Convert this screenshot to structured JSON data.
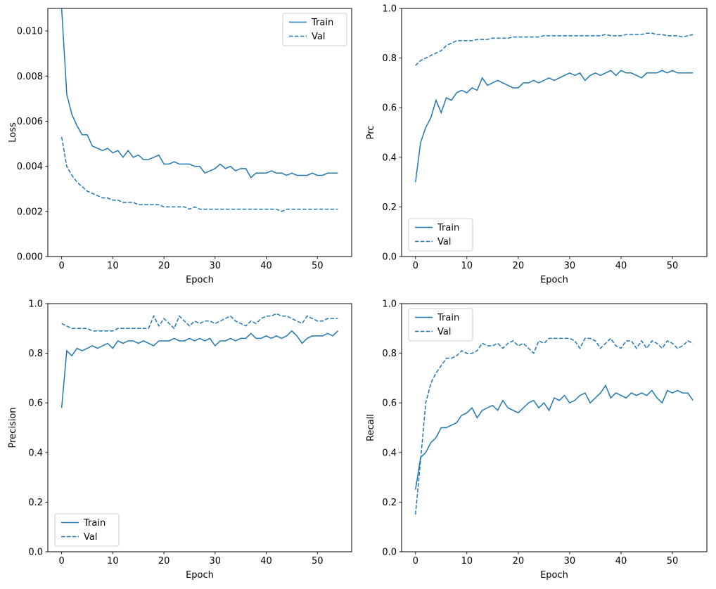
{
  "figure": {
    "background": "#ffffff",
    "accent_color": "#1f77b4",
    "spine_color": "#000000",
    "legend_edge_color": "#cccccc"
  },
  "chart_data": [
    {
      "type": "line",
      "title": "",
      "xlabel": "Epoch",
      "ylabel": "Loss",
      "xlim": [
        -2.7,
        56.7
      ],
      "ylim": [
        0,
        0.011
      ],
      "grid": false,
      "xticks": {
        "values": [
          0,
          10,
          20,
          30,
          40,
          50
        ],
        "labels": [
          "0",
          "10",
          "20",
          "30",
          "40",
          "50"
        ]
      },
      "yticks": {
        "values": [
          0,
          0.002,
          0.004,
          0.006,
          0.008,
          0.01
        ],
        "labels": [
          "0.000",
          "0.002",
          "0.004",
          "0.006",
          "0.008",
          "0.010"
        ]
      },
      "legend": {
        "loc": "upper-right",
        "entries": [
          "Train",
          "Val"
        ]
      },
      "x": [
        0,
        1,
        2,
        3,
        4,
        5,
        6,
        7,
        8,
        9,
        10,
        11,
        12,
        13,
        14,
        15,
        16,
        17,
        18,
        19,
        20,
        21,
        22,
        23,
        24,
        25,
        26,
        27,
        28,
        29,
        30,
        31,
        32,
        33,
        34,
        35,
        36,
        37,
        38,
        39,
        40,
        41,
        42,
        43,
        44,
        45,
        46,
        47,
        48,
        49,
        50,
        51,
        52,
        53,
        54
      ],
      "series": [
        {
          "name": "Train",
          "style": "solid",
          "color": "#1f77b4",
          "values": [
            0.011,
            0.0072,
            0.0063,
            0.0058,
            0.0054,
            0.0054,
            0.0049,
            0.0048,
            0.0047,
            0.0048,
            0.0046,
            0.0047,
            0.0044,
            0.0047,
            0.0044,
            0.0045,
            0.0043,
            0.0043,
            0.0044,
            0.0045,
            0.0041,
            0.0041,
            0.0042,
            0.0041,
            0.0041,
            0.0041,
            0.004,
            0.004,
            0.0037,
            0.0038,
            0.0039,
            0.0041,
            0.0039,
            0.004,
            0.0038,
            0.0039,
            0.0039,
            0.0035,
            0.0037,
            0.0037,
            0.0037,
            0.0038,
            0.0037,
            0.0037,
            0.0036,
            0.0037,
            0.0036,
            0.0036,
            0.0036,
            0.0037,
            0.0036,
            0.0036,
            0.0037,
            0.0037,
            0.0037
          ]
        },
        {
          "name": "Val",
          "style": "dashed",
          "color": "#1f77b4",
          "values": [
            0.0053,
            0.004,
            0.0036,
            0.0033,
            0.0031,
            0.0029,
            0.0028,
            0.0027,
            0.0026,
            0.0026,
            0.0025,
            0.0025,
            0.0024,
            0.0024,
            0.0024,
            0.0023,
            0.0023,
            0.0023,
            0.0023,
            0.0023,
            0.0022,
            0.0022,
            0.0022,
            0.0022,
            0.0022,
            0.0021,
            0.0022,
            0.0021,
            0.0021,
            0.0021,
            0.0021,
            0.0021,
            0.0021,
            0.0021,
            0.0021,
            0.0021,
            0.0021,
            0.0021,
            0.0021,
            0.0021,
            0.0021,
            0.0021,
            0.0021,
            0.002,
            0.0021,
            0.0021,
            0.0021,
            0.0021,
            0.0021,
            0.0021,
            0.0021,
            0.0021,
            0.0021,
            0.0021,
            0.0021
          ]
        }
      ]
    },
    {
      "type": "line",
      "title": "",
      "xlabel": "Epoch",
      "ylabel": "Prc",
      "xlim": [
        -2.7,
        56.7
      ],
      "ylim": [
        0,
        1.0
      ],
      "grid": false,
      "xticks": {
        "values": [
          0,
          10,
          20,
          30,
          40,
          50
        ],
        "labels": [
          "0",
          "10",
          "20",
          "30",
          "40",
          "50"
        ]
      },
      "yticks": {
        "values": [
          0,
          0.2,
          0.4,
          0.6,
          0.8,
          1.0
        ],
        "labels": [
          "0.0",
          "0.2",
          "0.4",
          "0.6",
          "0.8",
          "1.0"
        ]
      },
      "legend": {
        "loc": "lower-left",
        "entries": [
          "Train",
          "Val"
        ]
      },
      "x": [
        0,
        1,
        2,
        3,
        4,
        5,
        6,
        7,
        8,
        9,
        10,
        11,
        12,
        13,
        14,
        15,
        16,
        17,
        18,
        19,
        20,
        21,
        22,
        23,
        24,
        25,
        26,
        27,
        28,
        29,
        30,
        31,
        32,
        33,
        34,
        35,
        36,
        37,
        38,
        39,
        40,
        41,
        42,
        43,
        44,
        45,
        46,
        47,
        48,
        49,
        50,
        51,
        52,
        53,
        54
      ],
      "series": [
        {
          "name": "Train",
          "style": "solid",
          "color": "#1f77b4",
          "values": [
            0.3,
            0.46,
            0.52,
            0.56,
            0.63,
            0.58,
            0.64,
            0.63,
            0.66,
            0.67,
            0.66,
            0.68,
            0.67,
            0.72,
            0.69,
            0.7,
            0.71,
            0.7,
            0.69,
            0.68,
            0.68,
            0.7,
            0.7,
            0.71,
            0.7,
            0.71,
            0.72,
            0.71,
            0.72,
            0.73,
            0.74,
            0.73,
            0.74,
            0.71,
            0.73,
            0.74,
            0.73,
            0.74,
            0.75,
            0.73,
            0.75,
            0.74,
            0.74,
            0.73,
            0.72,
            0.74,
            0.74,
            0.74,
            0.75,
            0.74,
            0.75,
            0.74,
            0.74,
            0.74,
            0.74
          ]
        },
        {
          "name": "Val",
          "style": "dashed",
          "color": "#1f77b4",
          "values": [
            0.77,
            0.79,
            0.8,
            0.81,
            0.82,
            0.83,
            0.85,
            0.86,
            0.87,
            0.87,
            0.87,
            0.87,
            0.875,
            0.875,
            0.875,
            0.88,
            0.88,
            0.88,
            0.88,
            0.885,
            0.885,
            0.885,
            0.885,
            0.885,
            0.885,
            0.89,
            0.89,
            0.89,
            0.89,
            0.89,
            0.89,
            0.89,
            0.89,
            0.89,
            0.89,
            0.89,
            0.89,
            0.895,
            0.89,
            0.89,
            0.89,
            0.895,
            0.895,
            0.895,
            0.895,
            0.9,
            0.9,
            0.895,
            0.895,
            0.89,
            0.89,
            0.89,
            0.885,
            0.89,
            0.895
          ]
        }
      ]
    },
    {
      "type": "line",
      "title": "",
      "xlabel": "Epoch",
      "ylabel": "Precision",
      "xlim": [
        -2.7,
        56.7
      ],
      "ylim": [
        0,
        1.0
      ],
      "grid": false,
      "xticks": {
        "values": [
          0,
          10,
          20,
          30,
          40,
          50
        ],
        "labels": [
          "0",
          "10",
          "20",
          "30",
          "40",
          "50"
        ]
      },
      "yticks": {
        "values": [
          0,
          0.2,
          0.4,
          0.6,
          0.8,
          1.0
        ],
        "labels": [
          "0.0",
          "0.2",
          "0.4",
          "0.6",
          "0.8",
          "1.0"
        ]
      },
      "legend": {
        "loc": "lower-left",
        "entries": [
          "Train",
          "Val"
        ]
      },
      "x": [
        0,
        1,
        2,
        3,
        4,
        5,
        6,
        7,
        8,
        9,
        10,
        11,
        12,
        13,
        14,
        15,
        16,
        17,
        18,
        19,
        20,
        21,
        22,
        23,
        24,
        25,
        26,
        27,
        28,
        29,
        30,
        31,
        32,
        33,
        34,
        35,
        36,
        37,
        38,
        39,
        40,
        41,
        42,
        43,
        44,
        45,
        46,
        47,
        48,
        49,
        50,
        51,
        52,
        53,
        54
      ],
      "series": [
        {
          "name": "Train",
          "style": "solid",
          "color": "#1f77b4",
          "values": [
            0.58,
            0.81,
            0.79,
            0.82,
            0.81,
            0.82,
            0.83,
            0.82,
            0.83,
            0.84,
            0.82,
            0.85,
            0.84,
            0.85,
            0.85,
            0.84,
            0.85,
            0.84,
            0.83,
            0.85,
            0.85,
            0.85,
            0.86,
            0.85,
            0.85,
            0.86,
            0.85,
            0.86,
            0.85,
            0.86,
            0.83,
            0.85,
            0.85,
            0.86,
            0.85,
            0.86,
            0.86,
            0.88,
            0.86,
            0.86,
            0.87,
            0.86,
            0.87,
            0.86,
            0.87,
            0.89,
            0.87,
            0.84,
            0.86,
            0.87,
            0.87,
            0.87,
            0.88,
            0.87,
            0.89
          ]
        },
        {
          "name": "Val",
          "style": "dashed",
          "color": "#1f77b4",
          "values": [
            0.92,
            0.91,
            0.9,
            0.9,
            0.9,
            0.9,
            0.89,
            0.89,
            0.89,
            0.89,
            0.89,
            0.9,
            0.9,
            0.9,
            0.9,
            0.9,
            0.9,
            0.9,
            0.95,
            0.91,
            0.94,
            0.92,
            0.9,
            0.95,
            0.93,
            0.91,
            0.93,
            0.92,
            0.93,
            0.93,
            0.92,
            0.93,
            0.94,
            0.95,
            0.93,
            0.92,
            0.91,
            0.93,
            0.92,
            0.94,
            0.95,
            0.95,
            0.96,
            0.95,
            0.95,
            0.94,
            0.93,
            0.92,
            0.95,
            0.94,
            0.93,
            0.93,
            0.94,
            0.94,
            0.94
          ]
        }
      ]
    },
    {
      "type": "line",
      "title": "",
      "xlabel": "Epoch",
      "ylabel": "Recall",
      "xlim": [
        -2.7,
        56.7
      ],
      "ylim": [
        0,
        1.0
      ],
      "grid": false,
      "xticks": {
        "values": [
          0,
          10,
          20,
          30,
          40,
          50
        ],
        "labels": [
          "0",
          "10",
          "20",
          "30",
          "40",
          "50"
        ]
      },
      "yticks": {
        "values": [
          0,
          0.2,
          0.4,
          0.6,
          0.8,
          1.0
        ],
        "labels": [
          "0.0",
          "0.2",
          "0.4",
          "0.6",
          "0.8",
          "1.0"
        ]
      },
      "legend": {
        "loc": "upper-left",
        "entries": [
          "Train",
          "Val"
        ]
      },
      "x": [
        0,
        1,
        2,
        3,
        4,
        5,
        6,
        7,
        8,
        9,
        10,
        11,
        12,
        13,
        14,
        15,
        16,
        17,
        18,
        19,
        20,
        21,
        22,
        23,
        24,
        25,
        26,
        27,
        28,
        29,
        30,
        31,
        32,
        33,
        34,
        35,
        36,
        37,
        38,
        39,
        40,
        41,
        42,
        43,
        44,
        45,
        46,
        47,
        48,
        49,
        50,
        51,
        52,
        53,
        54
      ],
      "series": [
        {
          "name": "Train",
          "style": "solid",
          "color": "#1f77b4",
          "values": [
            0.25,
            0.38,
            0.4,
            0.44,
            0.46,
            0.5,
            0.5,
            0.51,
            0.52,
            0.55,
            0.56,
            0.58,
            0.54,
            0.57,
            0.58,
            0.59,
            0.57,
            0.61,
            0.58,
            0.57,
            0.56,
            0.58,
            0.6,
            0.61,
            0.58,
            0.6,
            0.57,
            0.62,
            0.61,
            0.63,
            0.6,
            0.61,
            0.63,
            0.64,
            0.6,
            0.62,
            0.64,
            0.67,
            0.62,
            0.64,
            0.63,
            0.62,
            0.64,
            0.63,
            0.64,
            0.63,
            0.65,
            0.62,
            0.6,
            0.65,
            0.64,
            0.65,
            0.64,
            0.64,
            0.61
          ]
        },
        {
          "name": "Val",
          "style": "dashed",
          "color": "#1f77b4",
          "values": [
            0.15,
            0.37,
            0.6,
            0.68,
            0.72,
            0.75,
            0.78,
            0.78,
            0.79,
            0.81,
            0.8,
            0.8,
            0.81,
            0.84,
            0.83,
            0.83,
            0.84,
            0.82,
            0.84,
            0.85,
            0.83,
            0.84,
            0.82,
            0.8,
            0.85,
            0.84,
            0.86,
            0.86,
            0.86,
            0.86,
            0.86,
            0.85,
            0.82,
            0.86,
            0.86,
            0.85,
            0.82,
            0.84,
            0.86,
            0.83,
            0.82,
            0.85,
            0.85,
            0.82,
            0.85,
            0.82,
            0.85,
            0.84,
            0.82,
            0.85,
            0.84,
            0.82,
            0.83,
            0.85,
            0.84
          ]
        }
      ]
    }
  ]
}
